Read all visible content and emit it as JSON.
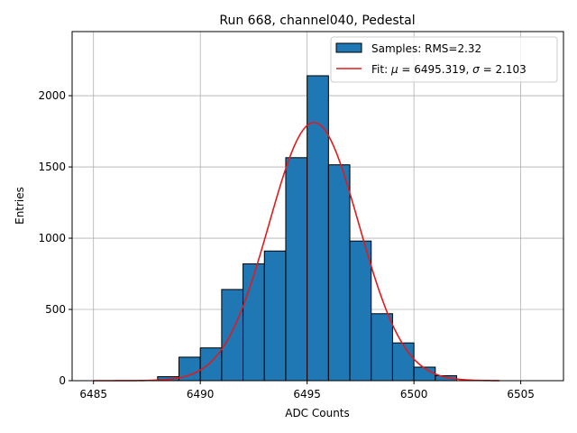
{
  "chart_data": {
    "type": "bar",
    "title": "Run 668, channel040, Pedestal",
    "xlabel": "ADC Counts",
    "ylabel": "Entries",
    "xlim": [
      6484.0,
      6507.0
    ],
    "ylim": [
      0,
      2450
    ],
    "xticks": [
      6485,
      6490,
      6495,
      6500,
      6505
    ],
    "yticks": [
      0,
      500,
      1000,
      1500,
      2000
    ],
    "grid": true,
    "legend_position": "top-right",
    "colors": {
      "bar_fill": "#1f77b4",
      "bar_edge": "#000000",
      "fit_line": "#e31a1c"
    },
    "bins": [
      {
        "x0": 6488,
        "x1": 6489,
        "count": 28
      },
      {
        "x0": 6489,
        "x1": 6490,
        "count": 165
      },
      {
        "x0": 6490,
        "x1": 6491,
        "count": 230
      },
      {
        "x0": 6491,
        "x1": 6492,
        "count": 640
      },
      {
        "x0": 6492,
        "x1": 6493,
        "count": 820
      },
      {
        "x0": 6493,
        "x1": 6494,
        "count": 910
      },
      {
        "x0": 6494,
        "x1": 6495,
        "count": 1565
      },
      {
        "x0": 6495,
        "x1": 6496,
        "count": 2140
      },
      {
        "x0": 6496,
        "x1": 6497,
        "count": 1515
      },
      {
        "x0": 6497,
        "x1": 6498,
        "count": 980
      },
      {
        "x0": 6498,
        "x1": 6499,
        "count": 470
      },
      {
        "x0": 6499,
        "x1": 6500,
        "count": 265
      },
      {
        "x0": 6500,
        "x1": 6501,
        "count": 95
      },
      {
        "x0": 6501,
        "x1": 6502,
        "count": 35
      }
    ],
    "fit": {
      "mu": 6495.319,
      "sigma": 2.103,
      "amplitude": 1812,
      "x_range": [
        6485,
        6504
      ]
    },
    "legend": [
      {
        "kind": "patch",
        "label": "Samples: RMS=2.32"
      },
      {
        "kind": "line",
        "label_prefix": "Fit: ",
        "mu_symbol": "μ",
        "mu_text": " = 6495.319, ",
        "sigma_symbol": "σ",
        "sigma_text": " = 2.103"
      }
    ]
  }
}
